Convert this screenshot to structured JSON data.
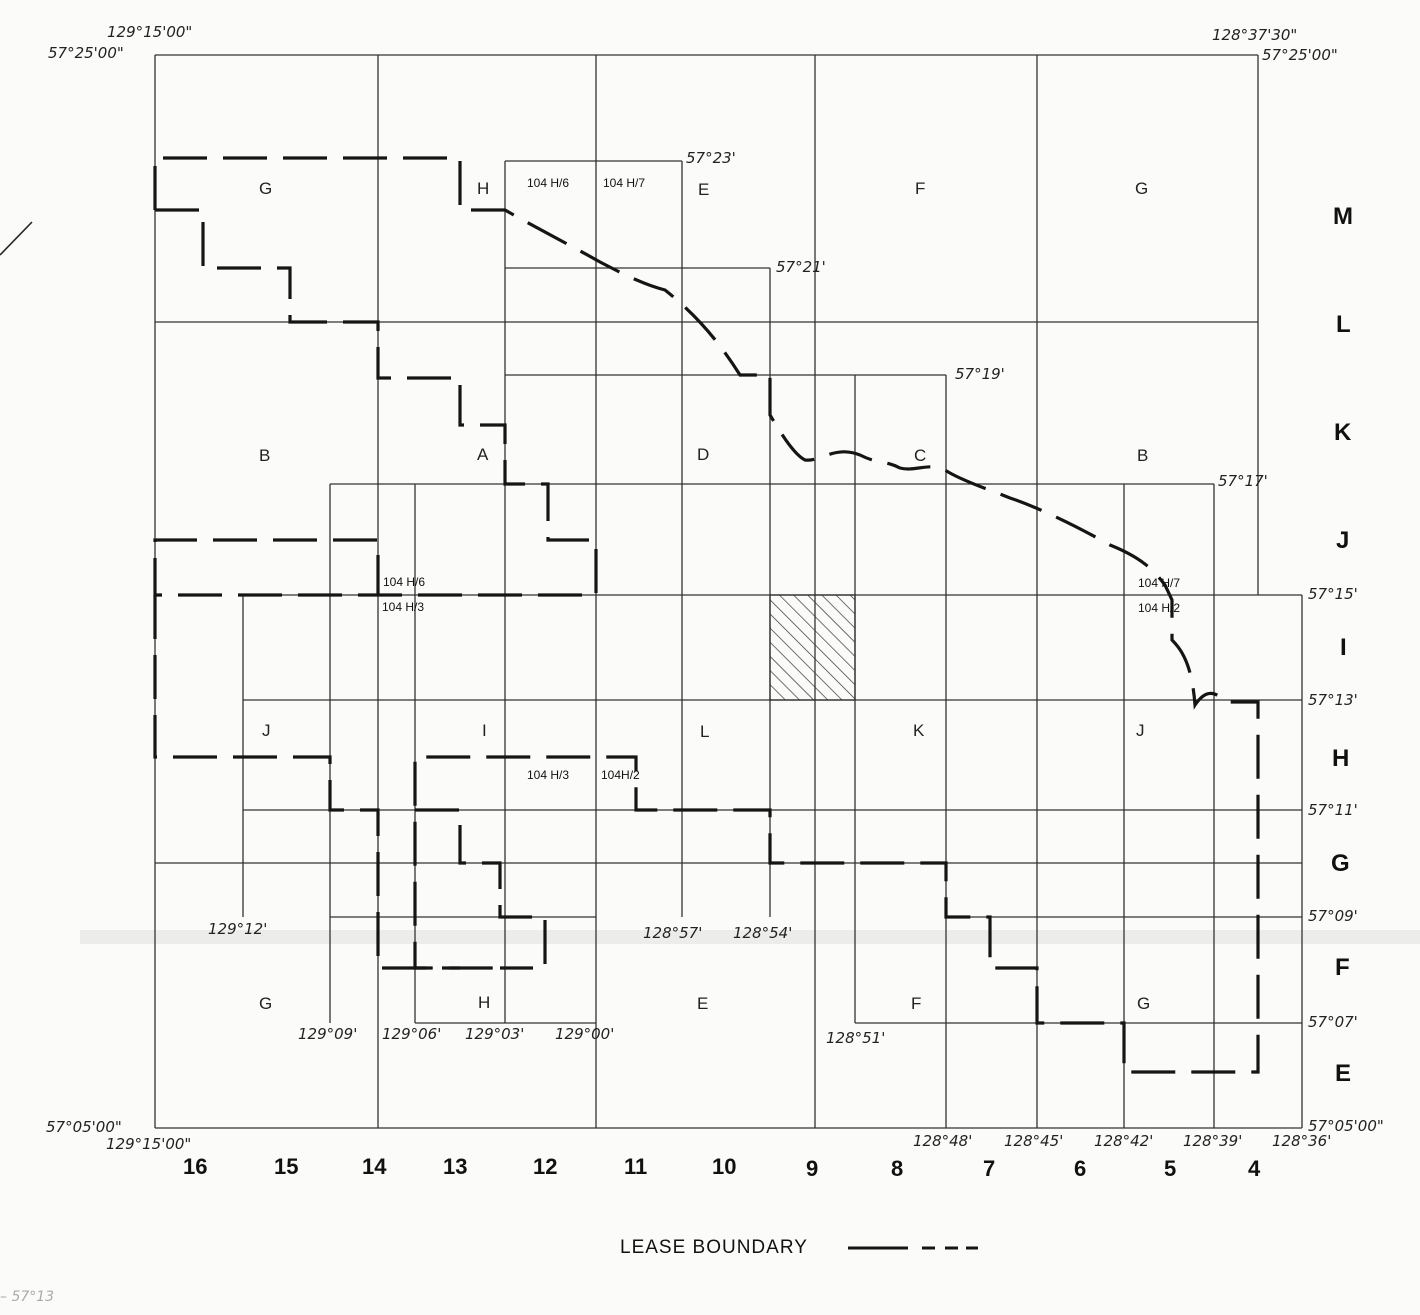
{
  "map": {
    "corner_labels": {
      "nw_lon": "129°15'00\"",
      "nw_lat": "57°25'00\"",
      "ne_lon": "128°37'30\"",
      "ne_lat": "57°25'00\"",
      "sw_lat": "57°05'00\"",
      "sw_lon": "129°15'00\"",
      "se_lat": "57°05'00\""
    },
    "inner_coords": {
      "lat_57_23": "57°23'",
      "lat_57_21": "57°21'",
      "lat_57_19": "57°19'",
      "lat_57_17": "57°17'",
      "lon_129_12": "129°12'",
      "lon_128_57": "128°57'",
      "lon_128_54": "128°54'",
      "lon_128_51": "128°51'"
    },
    "right_lat_labels": [
      "57°15'",
      "57°13'",
      "57°11'",
      "57°09'",
      "57°07'"
    ],
    "bottom_lon_labels": [
      "129°09'",
      "129°06'",
      "129°03'",
      "129°00'",
      "128°48'",
      "128°45'",
      "128°42'",
      "128°39'",
      "128°36'"
    ],
    "row_letters": [
      "M",
      "L",
      "K",
      "J",
      "I",
      "H",
      "G",
      "F",
      "E"
    ],
    "column_numbers": [
      "16",
      "15",
      "14",
      "13",
      "12",
      "11",
      "10",
      "9",
      "8",
      "7",
      "6",
      "5",
      "4"
    ],
    "block_letters": {
      "top": [
        "G",
        "H",
        "E",
        "F",
        "G"
      ],
      "middle": [
        "B",
        "A",
        "D",
        "C",
        "B"
      ],
      "lower": [
        "J",
        "I",
        "L",
        "K",
        "J"
      ],
      "bottom": [
        "G",
        "H",
        "E",
        "F",
        "G"
      ]
    },
    "sheet_labels": {
      "top_left": "104 H/6",
      "top_right": "104 H/7",
      "mid_left_upper": "104  H/6",
      "mid_left_lower": "104  H/3",
      "mid_right_upper": "104 H/7",
      "mid_right_lower": "104 H/2",
      "low_left": "104 H/3",
      "low_right": "104H/2"
    },
    "hatched_unit": {
      "column": "9",
      "row": "I"
    }
  },
  "legend": {
    "label": "LEASE BOUNDARY"
  },
  "margin_note": "57°13"
}
